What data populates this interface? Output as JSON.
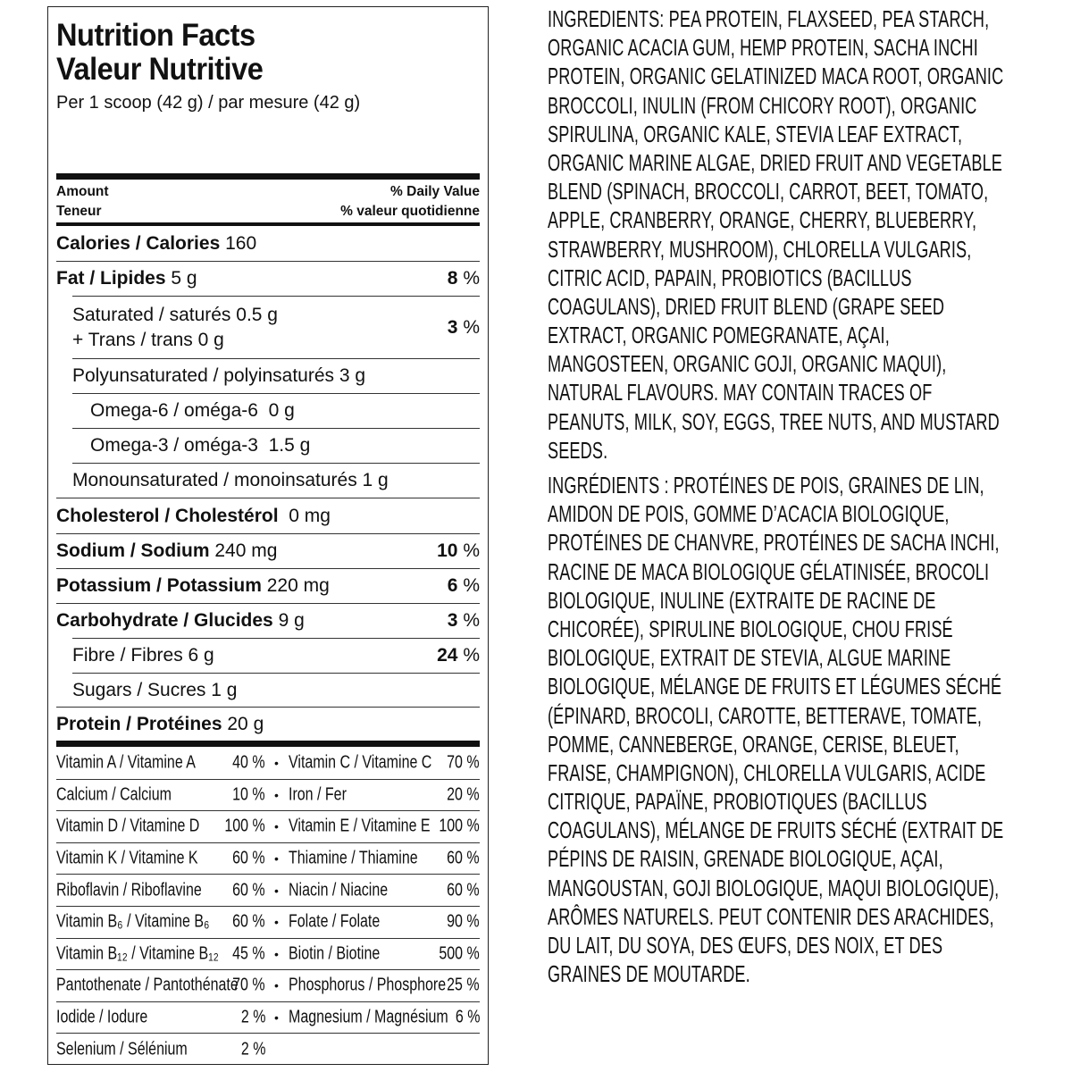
{
  "nutrition": {
    "title_en": "Nutrition Facts",
    "title_fr": "Valeur Nutritive",
    "serving": "Per 1 scoop (42 g) / par mesure (42 g)",
    "header": {
      "amount_en": "Amount",
      "amount_fr": "Teneur",
      "dv_en": "% Daily Value",
      "dv_fr": "% valeur quotidienne"
    },
    "rows": [
      {
        "bold": "Calories / Calories",
        "value": " 160",
        "dv": ""
      },
      {
        "bold": "Fat / Lipides",
        "value": " 5 g",
        "dv": "8 %"
      },
      {
        "text": "Saturated / saturés 0.5 g",
        "text2": "+ Trans / trans 0 g",
        "dv": "3 %"
      },
      {
        "text": "Polyunsaturated / polyinsaturés 3 g",
        "dv": ""
      },
      {
        "text": "Omega-6 / oméga-6  0 g",
        "dv": ""
      },
      {
        "text": "Omega-3 / oméga-3  1.5 g",
        "dv": ""
      },
      {
        "text": "Monounsaturated / monoinsaturés 1 g",
        "dv": ""
      },
      {
        "bold": "Cholesterol / Cholestérol",
        "value": "  0 mg",
        "dv": ""
      },
      {
        "bold": "Sodium / Sodium",
        "value": " 240 mg",
        "dv": "10 %"
      },
      {
        "bold": "Potassium / Potassium",
        "value": " 220 mg",
        "dv": "6 %"
      },
      {
        "bold": "Carbohydrate / Glucides",
        "value": " 9 g",
        "dv": "3 %"
      },
      {
        "text": "Fibre / Fibres 6 g",
        "dv": "24 %"
      },
      {
        "text": "Sugars / Sucres 1 g",
        "dv": ""
      },
      {
        "bold": "Protein / Protéines",
        "value": " 20 g",
        "dv": ""
      }
    ],
    "vitamins": [
      {
        "n1": "Vitamin A / Vitamine A",
        "p1": "40 %",
        "n2": "Vitamin C / Vitamine C",
        "p2": "70 %"
      },
      {
        "n1": "Calcium / Calcium",
        "p1": "10 %",
        "n2": "Iron / Fer",
        "p2": "20 %"
      },
      {
        "n1": "Vitamin D / Vitamine D",
        "p1": "100 %",
        "n2": "Vitamin E / Vitamine E",
        "p2": "100 %"
      },
      {
        "n1": "Vitamin K / Vitamine K",
        "p1": "60 %",
        "n2": "Thiamine / Thiamine",
        "p2": "60 %"
      },
      {
        "n1": "Riboflavin / Riboflavine",
        "p1": "60 %",
        "n2": "Niacin / Niacine",
        "p2": "60 %"
      },
      {
        "n1": "Vitamin B₆ / Vitamine B₆",
        "p1": "60 %",
        "n2": "Folate / Folate",
        "p2": "90 %"
      },
      {
        "n1": "Vitamin B₁₂ / Vitamine B₁₂",
        "p1": "45 %",
        "n2": "Biotin / Biotine",
        "p2": "500 %"
      },
      {
        "n1": "Pantothenate / Pantothénate",
        "p1": "70 %",
        "n2": "Phosphorus / Phosphore",
        "p2": "25 %"
      },
      {
        "n1": "Iodide / Iodure",
        "p1": "2 %",
        "n2": "Magnesium / Magnésium",
        "p2": "6 %"
      },
      {
        "n1": "Selenium / Sélénium",
        "p1": "2 %",
        "n2": "",
        "p2": ""
      }
    ]
  },
  "ingredients_en": [
    "INGREDIENTS: PEA PROTEIN, FLAXSEED, PEA STARCH,",
    "ORGANIC ACACIA GUM, HEMP PROTEIN, SACHA INCHI",
    "PROTEIN, ORGANIC GELATINIZED MACA ROOT, ORGANIC",
    "BROCCOLI, INULIN (FROM CHICORY ROOT), ORGANIC",
    "SPIRULINA, ORGANIC KALE, STEVIA LEAF EXTRACT,",
    "ORGANIC MARINE ALGAE, DRIED FRUIT AND VEGETABLE",
    "BLEND (SPINACH, BROCCOLI, CARROT, BEET, TOMATO,",
    "APPLE, CRANBERRY, ORANGE, CHERRY, BLUEBERRY,",
    "STRAWBERRY, MUSHROOM), CHLORELLA VULGARIS,",
    "CITRIC ACID, PAPAIN, PROBIOTICS (BACILLUS",
    "COAGULANS), DRIED FRUIT BLEND (GRAPE SEED",
    "EXTRACT, ORGANIC POMEGRANATE, AÇAI,",
    "MANGOSTEEN, ORGANIC GOJI, ORGANIC MAQUI),",
    "NATURAL FLAVOURS. MAY CONTAIN TRACES OF",
    "PEANUTS, MILK, SOY, EGGS, TREE NUTS, AND MUSTARD",
    "SEEDS."
  ],
  "ingredients_fr": [
    "INGRÉDIENTS : PROTÉINES DE POIS, GRAINES DE LIN,",
    "AMIDON DE POIS, GOMME D’ACACIA BIOLOGIQUE,",
    "PROTÉINES DE CHANVRE, PROTÉINES DE SACHA INCHI,",
    "RACINE DE MACA BIOLOGIQUE GÉLATINISÉE, BROCOLI",
    "BIOLOGIQUE, INULINE (EXTRAITE DE RACINE DE",
    "CHICORÉE), SPIRULINE BIOLOGIQUE, CHOU FRISÉ",
    "BIOLOGIQUE, EXTRAIT DE STEVIA, ALGUE MARINE",
    "BIOLOGIQUE, MÉLANGE DE FRUITS ET LÉGUMES SÉCHÉ",
    "(ÉPINARD, BROCOLI, CAROTTE, BETTERAVE, TOMATE,",
    "POMME, CANNEBERGE, ORANGE, CERISE, BLEUET,",
    "FRAISE, CHAMPIGNON), CHLORELLA VULGARIS, ACIDE",
    "CITRIQUE, PAPAÏNE, PROBIOTIQUES (BACILLUS",
    "COAGULANS), MÉLANGE DE FRUITS SÉCHÉ (EXTRAIT DE",
    "PÉPINS DE RAISIN, GRENADE BIOLOGIQUE, AÇAI,",
    "MANGOUSTAN, GOJI BIOLOGIQUE, MAQUI BIOLOGIQUE),",
    "ARÔMES NATURELS. PEUT CONTENIR DES ARACHIDES,",
    "DU LAIT, DU SOYA, DES ŒUFS, DES NOIX, ET DES",
    "GRAINES DE MOUTARDE."
  ]
}
